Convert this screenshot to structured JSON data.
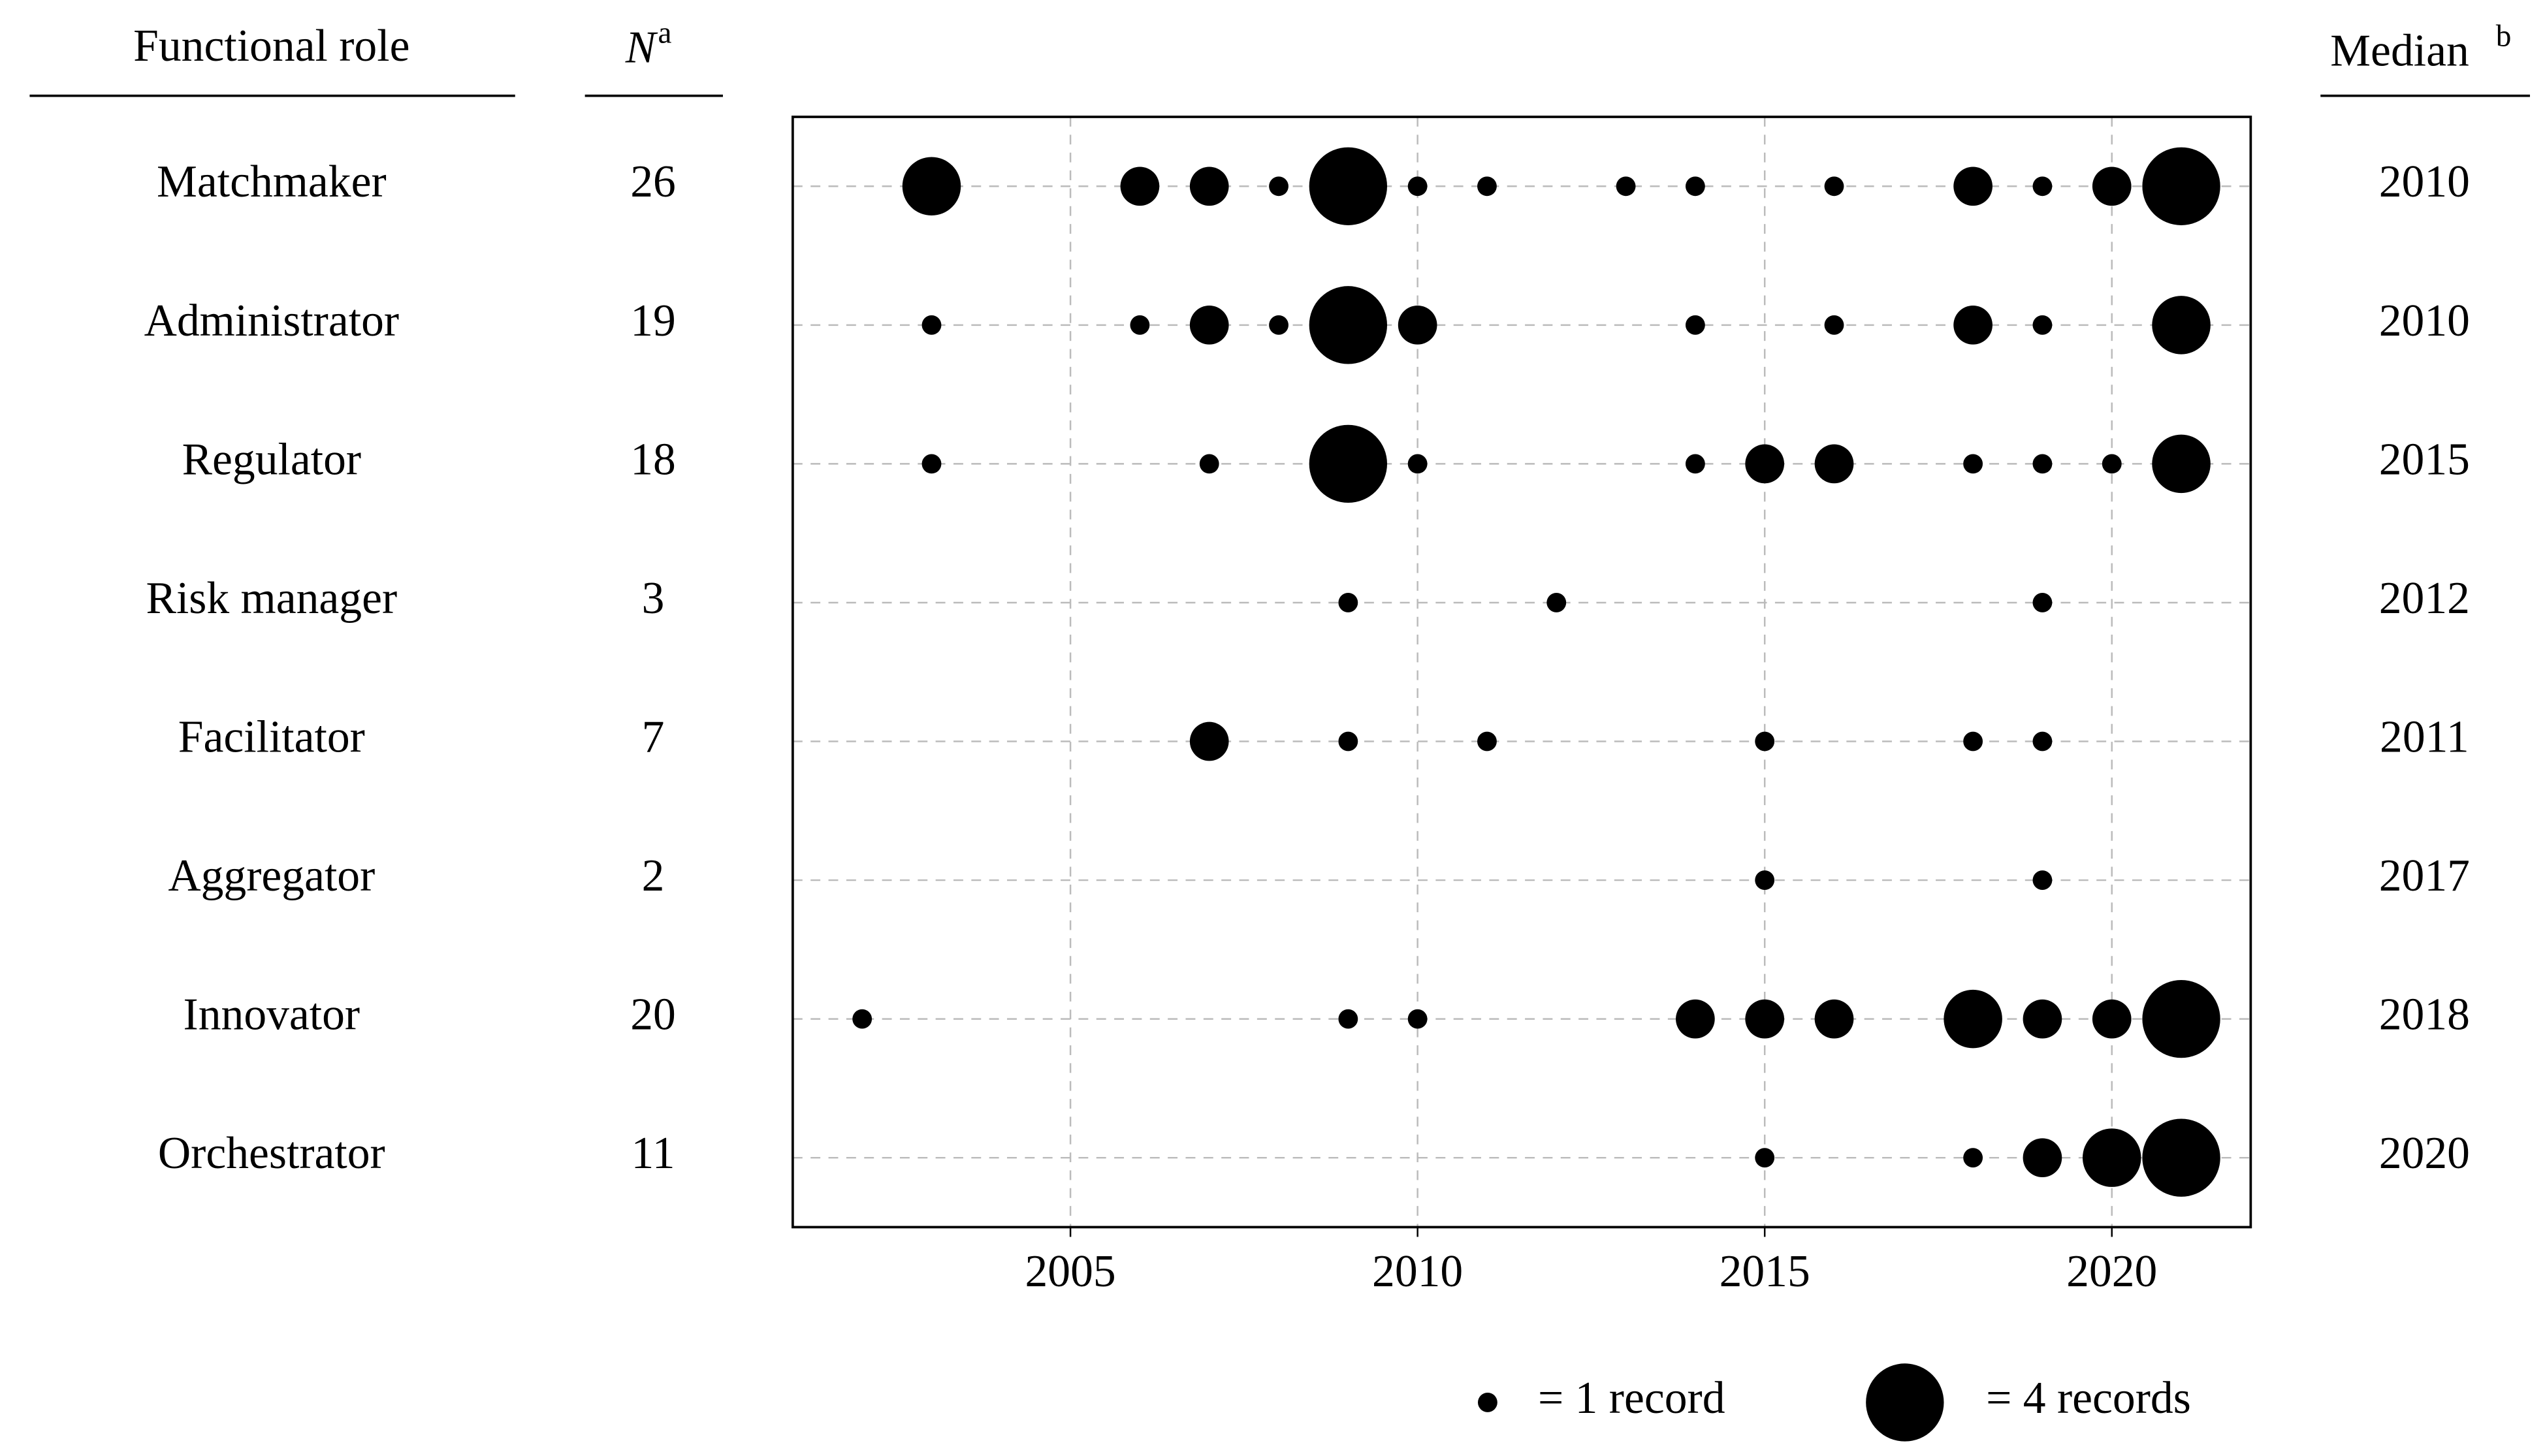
{
  "chart_data": {
    "type": "bubble",
    "columns": {
      "role": "Functional role",
      "n": {
        "text": "N",
        "note": "a"
      },
      "median": {
        "text": "Median",
        "note": "b"
      }
    },
    "rows": [
      {
        "name": "Matchmaker",
        "n": 26,
        "median": 2010,
        "x": [
          2003,
          2006,
          2007,
          2008,
          2009,
          2010,
          2011,
          2013,
          2014,
          2016,
          2018,
          2019,
          2020,
          2021
        ],
        "sizes": [
          3,
          2,
          2,
          1,
          4,
          1,
          1,
          1,
          1,
          1,
          2,
          1,
          2,
          4
        ]
      },
      {
        "name": "Administrator",
        "n": 19,
        "median": 2010,
        "x": [
          2003,
          2006,
          2007,
          2008,
          2009,
          2010,
          2014,
          2016,
          2018,
          2019,
          2021
        ],
        "sizes": [
          1,
          1,
          2,
          1,
          4,
          2,
          1,
          1,
          2,
          1,
          3
        ]
      },
      {
        "name": "Regulator",
        "n": 18,
        "median": 2015,
        "x": [
          2003,
          2007,
          2009,
          2010,
          2014,
          2015,
          2016,
          2018,
          2019,
          2020,
          2021
        ],
        "sizes": [
          1,
          1,
          4,
          1,
          1,
          2,
          2,
          1,
          1,
          1,
          3
        ]
      },
      {
        "name": "Risk manager",
        "n": 3,
        "median": 2012,
        "x": [
          2009,
          2012,
          2019
        ],
        "sizes": [
          1,
          1,
          1
        ]
      },
      {
        "name": "Facilitator",
        "n": 7,
        "median": 2011,
        "x": [
          2007,
          2009,
          2011,
          2015,
          2018,
          2019
        ],
        "sizes": [
          2,
          1,
          1,
          1,
          1,
          1
        ]
      },
      {
        "name": "Aggregator",
        "n": 2,
        "median": 2017,
        "x": [
          2015,
          2019
        ],
        "sizes": [
          1,
          1
        ]
      },
      {
        "name": "Innovator",
        "n": 20,
        "median": 2018,
        "x": [
          2002,
          2009,
          2010,
          2014,
          2015,
          2016,
          2018,
          2019,
          2020,
          2021
        ],
        "sizes": [
          1,
          1,
          1,
          2,
          2,
          2,
          3,
          2,
          2,
          4
        ]
      },
      {
        "name": "Orchestrator",
        "n": 11,
        "median": 2020,
        "x": [
          2015,
          2018,
          2019,
          2020,
          2021
        ],
        "sizes": [
          1,
          1,
          2,
          3,
          4
        ]
      }
    ],
    "xlim": [
      2001,
      2022
    ],
    "xticks": [
      2005,
      2010,
      2015,
      2020
    ],
    "grid": true,
    "color": "#000000",
    "legend": [
      {
        "label": "= 1 record",
        "size": 1
      },
      {
        "label": "= 4 records",
        "size": 4
      }
    ]
  }
}
